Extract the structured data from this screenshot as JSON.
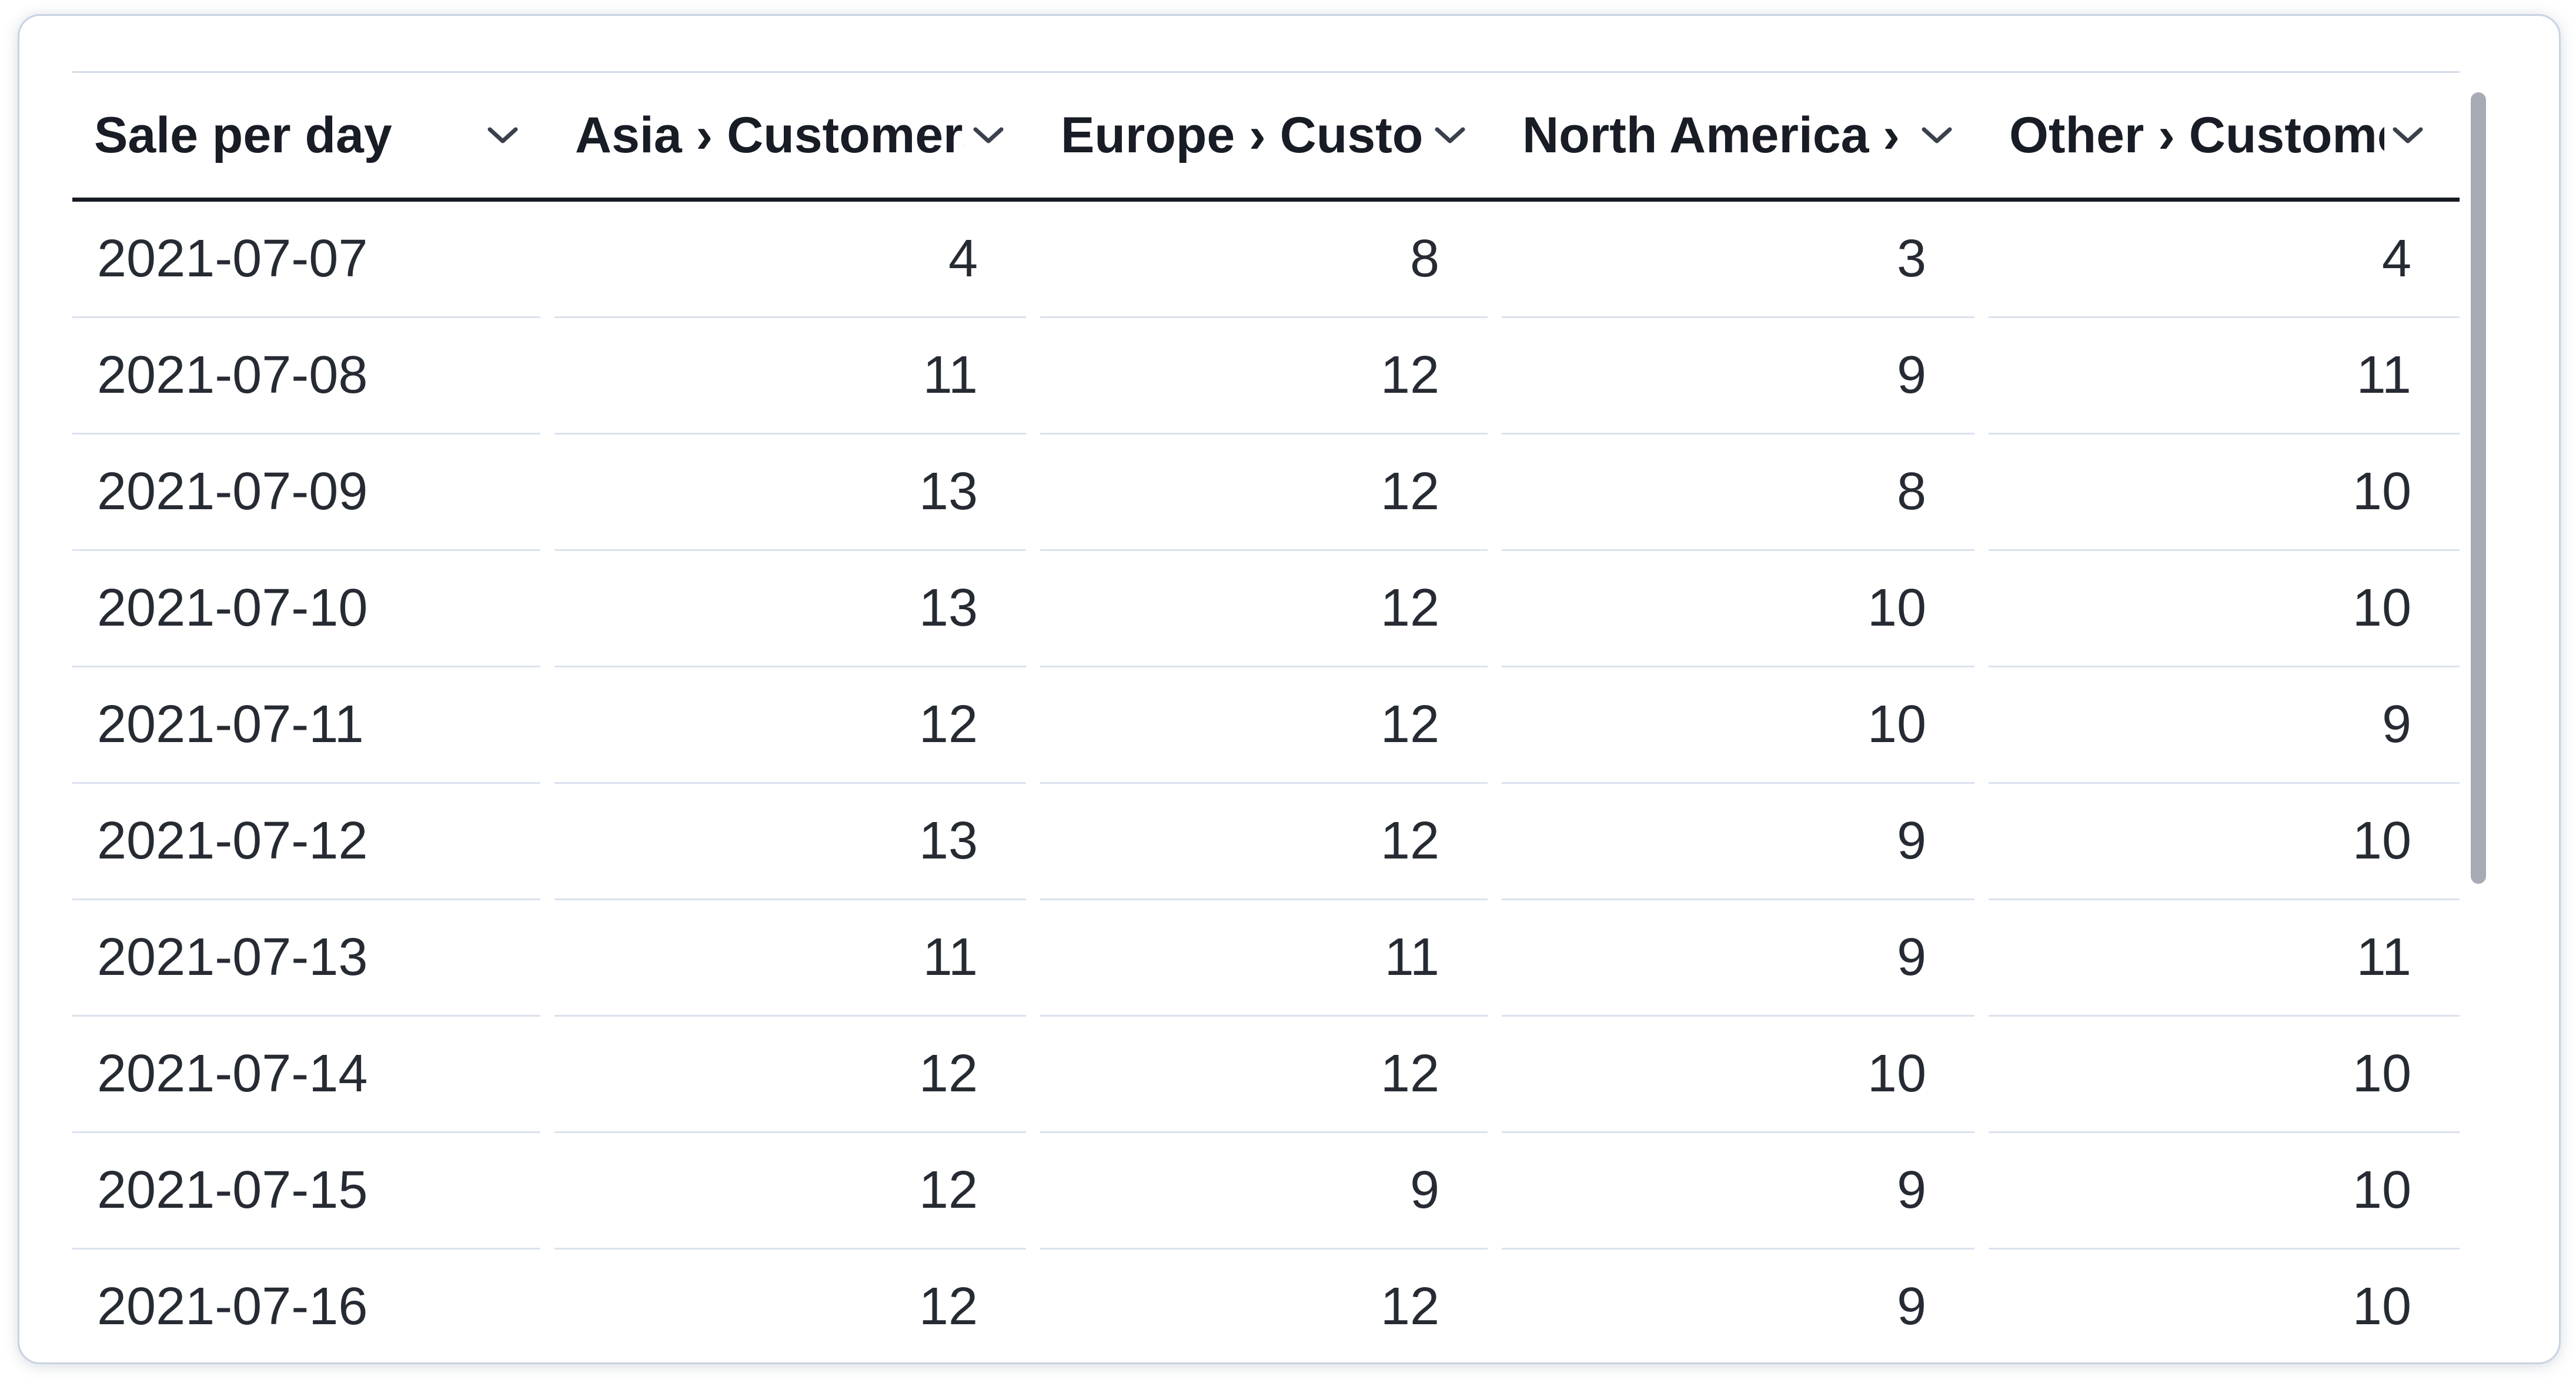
{
  "table": {
    "columns": [
      {
        "id": "date",
        "label": "Sale per day"
      },
      {
        "id": "asia",
        "label": "Asia › Customers"
      },
      {
        "id": "europe",
        "label": "Europe › Customers"
      },
      {
        "id": "north_america",
        "label": "North America › Customers"
      },
      {
        "id": "other",
        "label": "Other › Customers"
      }
    ],
    "rows": [
      {
        "date": "2021-07-07",
        "values": [
          4,
          8,
          3,
          4
        ]
      },
      {
        "date": "2021-07-08",
        "values": [
          11,
          12,
          9,
          11
        ]
      },
      {
        "date": "2021-07-09",
        "values": [
          13,
          12,
          8,
          10
        ]
      },
      {
        "date": "2021-07-10",
        "values": [
          13,
          12,
          10,
          10
        ]
      },
      {
        "date": "2021-07-11",
        "values": [
          12,
          12,
          10,
          9
        ]
      },
      {
        "date": "2021-07-12",
        "values": [
          13,
          12,
          9,
          10
        ]
      },
      {
        "date": "2021-07-13",
        "values": [
          11,
          11,
          9,
          11
        ]
      },
      {
        "date": "2021-07-14",
        "values": [
          12,
          12,
          10,
          10
        ]
      },
      {
        "date": "2021-07-15",
        "values": [
          12,
          9,
          9,
          10
        ]
      },
      {
        "date": "2021-07-16",
        "values": [
          12,
          12,
          9,
          10
        ]
      }
    ]
  },
  "icons": {
    "header_sort": "chevron-down-icon"
  },
  "colors": {
    "card_border": "#c8d3e1",
    "header_rule": "#171b23",
    "row_separator": "#dbe2ee",
    "header_text": "#181c24",
    "body_text": "#262b33",
    "scrollbar_thumb": "#a6abb4"
  },
  "scrollbar": {
    "orientation": "vertical",
    "visible": true
  }
}
